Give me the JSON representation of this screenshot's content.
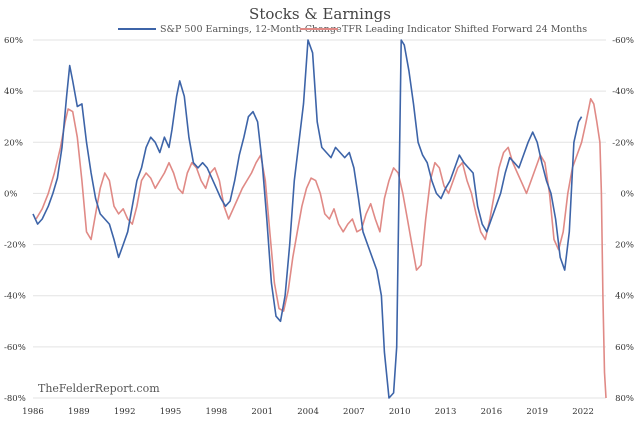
{
  "chart_data": {
    "type": "line",
    "title": "Stocks & Earnings",
    "watermark": "TheFelderReport.com",
    "legend_position": "top-center",
    "grid": "horizontal",
    "x_range": [
      1986,
      2023.5
    ],
    "x_ticks": [
      "1986",
      "1989",
      "1992",
      "1995",
      "1998",
      "2001",
      "2004",
      "2007",
      "2010",
      "2013",
      "2016",
      "2019",
      "2022"
    ],
    "left_axis": {
      "range": [
        -80,
        60
      ],
      "ticks": [
        "60%",
        "40%",
        "20%",
        "0%",
        "-20%",
        "-40%",
        "-60%",
        "-80%"
      ]
    },
    "right_axis": {
      "inverted": true,
      "range": [
        80,
        -60
      ],
      "ticks": [
        "-60%",
        "-40%",
        "-20%",
        "0%",
        "20%",
        "40%",
        "60%",
        "80%"
      ]
    },
    "series": [
      {
        "name": "S&P 500 Earnings, 12-Month Change",
        "axis": "left",
        "color": "#3d64a8",
        "points": [
          [
            1986.0,
            -8
          ],
          [
            1986.3,
            -12
          ],
          [
            1986.6,
            -10
          ],
          [
            1987.0,
            -5
          ],
          [
            1987.3,
            0
          ],
          [
            1987.6,
            6
          ],
          [
            1987.9,
            18
          ],
          [
            1988.2,
            38
          ],
          [
            1988.4,
            50
          ],
          [
            1988.6,
            44
          ],
          [
            1988.9,
            34
          ],
          [
            1989.2,
            35
          ],
          [
            1989.5,
            20
          ],
          [
            1989.8,
            8
          ],
          [
            1990.1,
            -2
          ],
          [
            1990.4,
            -8
          ],
          [
            1990.7,
            -10
          ],
          [
            1991.0,
            -12
          ],
          [
            1991.3,
            -18
          ],
          [
            1991.6,
            -25
          ],
          [
            1991.9,
            -20
          ],
          [
            1992.2,
            -15
          ],
          [
            1992.5,
            -5
          ],
          [
            1992.8,
            5
          ],
          [
            1993.1,
            10
          ],
          [
            1993.4,
            18
          ],
          [
            1993.7,
            22
          ],
          [
            1994.0,
            20
          ],
          [
            1994.3,
            16
          ],
          [
            1994.6,
            22
          ],
          [
            1994.9,
            18
          ],
          [
            1995.1,
            25
          ],
          [
            1995.4,
            38
          ],
          [
            1995.6,
            44
          ],
          [
            1995.9,
            38
          ],
          [
            1996.2,
            22
          ],
          [
            1996.5,
            12
          ],
          [
            1996.8,
            10
          ],
          [
            1997.1,
            12
          ],
          [
            1997.4,
            10
          ],
          [
            1997.7,
            6
          ],
          [
            1998.0,
            2
          ],
          [
            1998.3,
            -2
          ],
          [
            1998.6,
            -5
          ],
          [
            1998.9,
            -3
          ],
          [
            1999.2,
            5
          ],
          [
            1999.5,
            15
          ],
          [
            1999.8,
            22
          ],
          [
            2000.1,
            30
          ],
          [
            2000.4,
            32
          ],
          [
            2000.7,
            28
          ],
          [
            2001.0,
            12
          ],
          [
            2001.3,
            -10
          ],
          [
            2001.6,
            -35
          ],
          [
            2001.9,
            -48
          ],
          [
            2002.2,
            -50
          ],
          [
            2002.5,
            -40
          ],
          [
            2002.8,
            -20
          ],
          [
            2003.1,
            5
          ],
          [
            2003.4,
            20
          ],
          [
            2003.7,
            35
          ],
          [
            2004.0,
            62
          ],
          [
            2004.3,
            55
          ],
          [
            2004.6,
            28
          ],
          [
            2004.9,
            18
          ],
          [
            2005.2,
            16
          ],
          [
            2005.5,
            14
          ],
          [
            2005.8,
            18
          ],
          [
            2006.1,
            16
          ],
          [
            2006.4,
            14
          ],
          [
            2006.7,
            16
          ],
          [
            2007.0,
            10
          ],
          [
            2007.3,
            -2
          ],
          [
            2007.6,
            -15
          ],
          [
            2007.9,
            -20
          ],
          [
            2008.2,
            -25
          ],
          [
            2008.5,
            -30
          ],
          [
            2008.8,
            -40
          ],
          [
            2009.0,
            -62
          ],
          [
            2009.3,
            -80
          ],
          [
            2009.6,
            -78
          ],
          [
            2009.8,
            -60
          ],
          [
            2010.0,
            20
          ],
          [
            2010.1,
            62
          ],
          [
            2010.3,
            58
          ],
          [
            2010.6,
            48
          ],
          [
            2010.9,
            35
          ],
          [
            2011.2,
            20
          ],
          [
            2011.5,
            15
          ],
          [
            2011.8,
            12
          ],
          [
            2012.1,
            5
          ],
          [
            2012.4,
            0
          ],
          [
            2012.7,
            -2
          ],
          [
            2013.0,
            2
          ],
          [
            2013.3,
            5
          ],
          [
            2013.6,
            10
          ],
          [
            2013.9,
            15
          ],
          [
            2014.2,
            12
          ],
          [
            2014.5,
            10
          ],
          [
            2014.8,
            8
          ],
          [
            2015.1,
            -5
          ],
          [
            2015.4,
            -12
          ],
          [
            2015.7,
            -15
          ],
          [
            2016.0,
            -10
          ],
          [
            2016.3,
            -5
          ],
          [
            2016.6,
            0
          ],
          [
            2016.9,
            8
          ],
          [
            2017.2,
            14
          ],
          [
            2017.5,
            12
          ],
          [
            2017.8,
            10
          ],
          [
            2018.1,
            15
          ],
          [
            2018.4,
            20
          ],
          [
            2018.7,
            24
          ],
          [
            2019.0,
            20
          ],
          [
            2019.3,
            12
          ],
          [
            2019.6,
            5
          ],
          [
            2019.9,
            0
          ],
          [
            2020.2,
            -10
          ],
          [
            2020.5,
            -25
          ],
          [
            2020.8,
            -30
          ],
          [
            2021.1,
            -15
          ],
          [
            2021.4,
            20
          ],
          [
            2021.7,
            28
          ],
          [
            2021.9,
            30
          ]
        ]
      },
      {
        "name": "TFR Leading Indicator Shifted Forward 24 Months",
        "axis": "right",
        "color": "#e08a86",
        "points": [
          [
            1986.2,
            10
          ],
          [
            1986.6,
            6
          ],
          [
            1987.0,
            0
          ],
          [
            1987.4,
            -8
          ],
          [
            1987.8,
            -18
          ],
          [
            1988.1,
            -28
          ],
          [
            1988.3,
            -33
          ],
          [
            1988.6,
            -32
          ],
          [
            1988.9,
            -22
          ],
          [
            1989.2,
            -5
          ],
          [
            1989.5,
            15
          ],
          [
            1989.8,
            18
          ],
          [
            1990.1,
            8
          ],
          [
            1990.4,
            -2
          ],
          [
            1990.7,
            -8
          ],
          [
            1991.0,
            -5
          ],
          [
            1991.3,
            5
          ],
          [
            1991.6,
            8
          ],
          [
            1991.9,
            6
          ],
          [
            1992.2,
            10
          ],
          [
            1992.5,
            12
          ],
          [
            1992.8,
            5
          ],
          [
            1993.1,
            -5
          ],
          [
            1993.4,
            -8
          ],
          [
            1993.7,
            -6
          ],
          [
            1994.0,
            -2
          ],
          [
            1994.3,
            -5
          ],
          [
            1994.6,
            -8
          ],
          [
            1994.9,
            -12
          ],
          [
            1995.2,
            -8
          ],
          [
            1995.5,
            -2
          ],
          [
            1995.8,
            0
          ],
          [
            1996.1,
            -8
          ],
          [
            1996.4,
            -12
          ],
          [
            1996.7,
            -10
          ],
          [
            1997.0,
            -5
          ],
          [
            1997.3,
            -2
          ],
          [
            1997.6,
            -8
          ],
          [
            1997.9,
            -10
          ],
          [
            1998.2,
            -5
          ],
          [
            1998.5,
            5
          ],
          [
            1998.8,
            10
          ],
          [
            1999.1,
            6
          ],
          [
            1999.4,
            2
          ],
          [
            1999.7,
            -2
          ],
          [
            2000.0,
            -5
          ],
          [
            2000.3,
            -8
          ],
          [
            2000.6,
            -12
          ],
          [
            2000.9,
            -15
          ],
          [
            2001.2,
            -5
          ],
          [
            2001.5,
            15
          ],
          [
            2001.8,
            35
          ],
          [
            2002.1,
            45
          ],
          [
            2002.4,
            46
          ],
          [
            2002.7,
            38
          ],
          [
            2003.0,
            25
          ],
          [
            2003.3,
            15
          ],
          [
            2003.6,
            5
          ],
          [
            2003.9,
            -2
          ],
          [
            2004.2,
            -6
          ],
          [
            2004.5,
            -5
          ],
          [
            2004.8,
            0
          ],
          [
            2005.1,
            8
          ],
          [
            2005.4,
            10
          ],
          [
            2005.7,
            6
          ],
          [
            2006.0,
            12
          ],
          [
            2006.3,
            15
          ],
          [
            2006.6,
            12
          ],
          [
            2006.9,
            10
          ],
          [
            2007.2,
            15
          ],
          [
            2007.5,
            14
          ],
          [
            2007.8,
            8
          ],
          [
            2008.1,
            4
          ],
          [
            2008.4,
            10
          ],
          [
            2008.7,
            15
          ],
          [
            2009.0,
            2
          ],
          [
            2009.3,
            -5
          ],
          [
            2009.6,
            -10
          ],
          [
            2009.9,
            -8
          ],
          [
            2010.2,
            0
          ],
          [
            2010.5,
            10
          ],
          [
            2010.8,
            20
          ],
          [
            2011.1,
            30
          ],
          [
            2011.4,
            28
          ],
          [
            2011.7,
            10
          ],
          [
            2012.0,
            -5
          ],
          [
            2012.3,
            -12
          ],
          [
            2012.6,
            -10
          ],
          [
            2012.9,
            -3
          ],
          [
            2013.2,
            0
          ],
          [
            2013.5,
            -5
          ],
          [
            2013.8,
            -10
          ],
          [
            2014.1,
            -12
          ],
          [
            2014.4,
            -5
          ],
          [
            2014.7,
            0
          ],
          [
            2015.0,
            8
          ],
          [
            2015.3,
            15
          ],
          [
            2015.6,
            18
          ],
          [
            2015.9,
            10
          ],
          [
            2016.2,
            0
          ],
          [
            2016.5,
            -10
          ],
          [
            2016.8,
            -16
          ],
          [
            2017.1,
            -18
          ],
          [
            2017.4,
            -12
          ],
          [
            2017.7,
            -8
          ],
          [
            2018.0,
            -4
          ],
          [
            2018.3,
            0
          ],
          [
            2018.6,
            -5
          ],
          [
            2018.9,
            -10
          ],
          [
            2019.2,
            -15
          ],
          [
            2019.5,
            -12
          ],
          [
            2019.8,
            0
          ],
          [
            2020.1,
            18
          ],
          [
            2020.4,
            22
          ],
          [
            2020.7,
            15
          ],
          [
            2021.0,
            0
          ],
          [
            2021.3,
            -10
          ],
          [
            2021.6,
            -15
          ],
          [
            2021.9,
            -20
          ],
          [
            2022.2,
            -28
          ],
          [
            2022.5,
            -37
          ],
          [
            2022.7,
            -35
          ],
          [
            2022.9,
            -28
          ],
          [
            2023.1,
            -20
          ],
          [
            2023.2,
            0
          ],
          [
            2023.3,
            40
          ],
          [
            2023.4,
            70
          ],
          [
            2023.5,
            80
          ]
        ]
      }
    ]
  }
}
